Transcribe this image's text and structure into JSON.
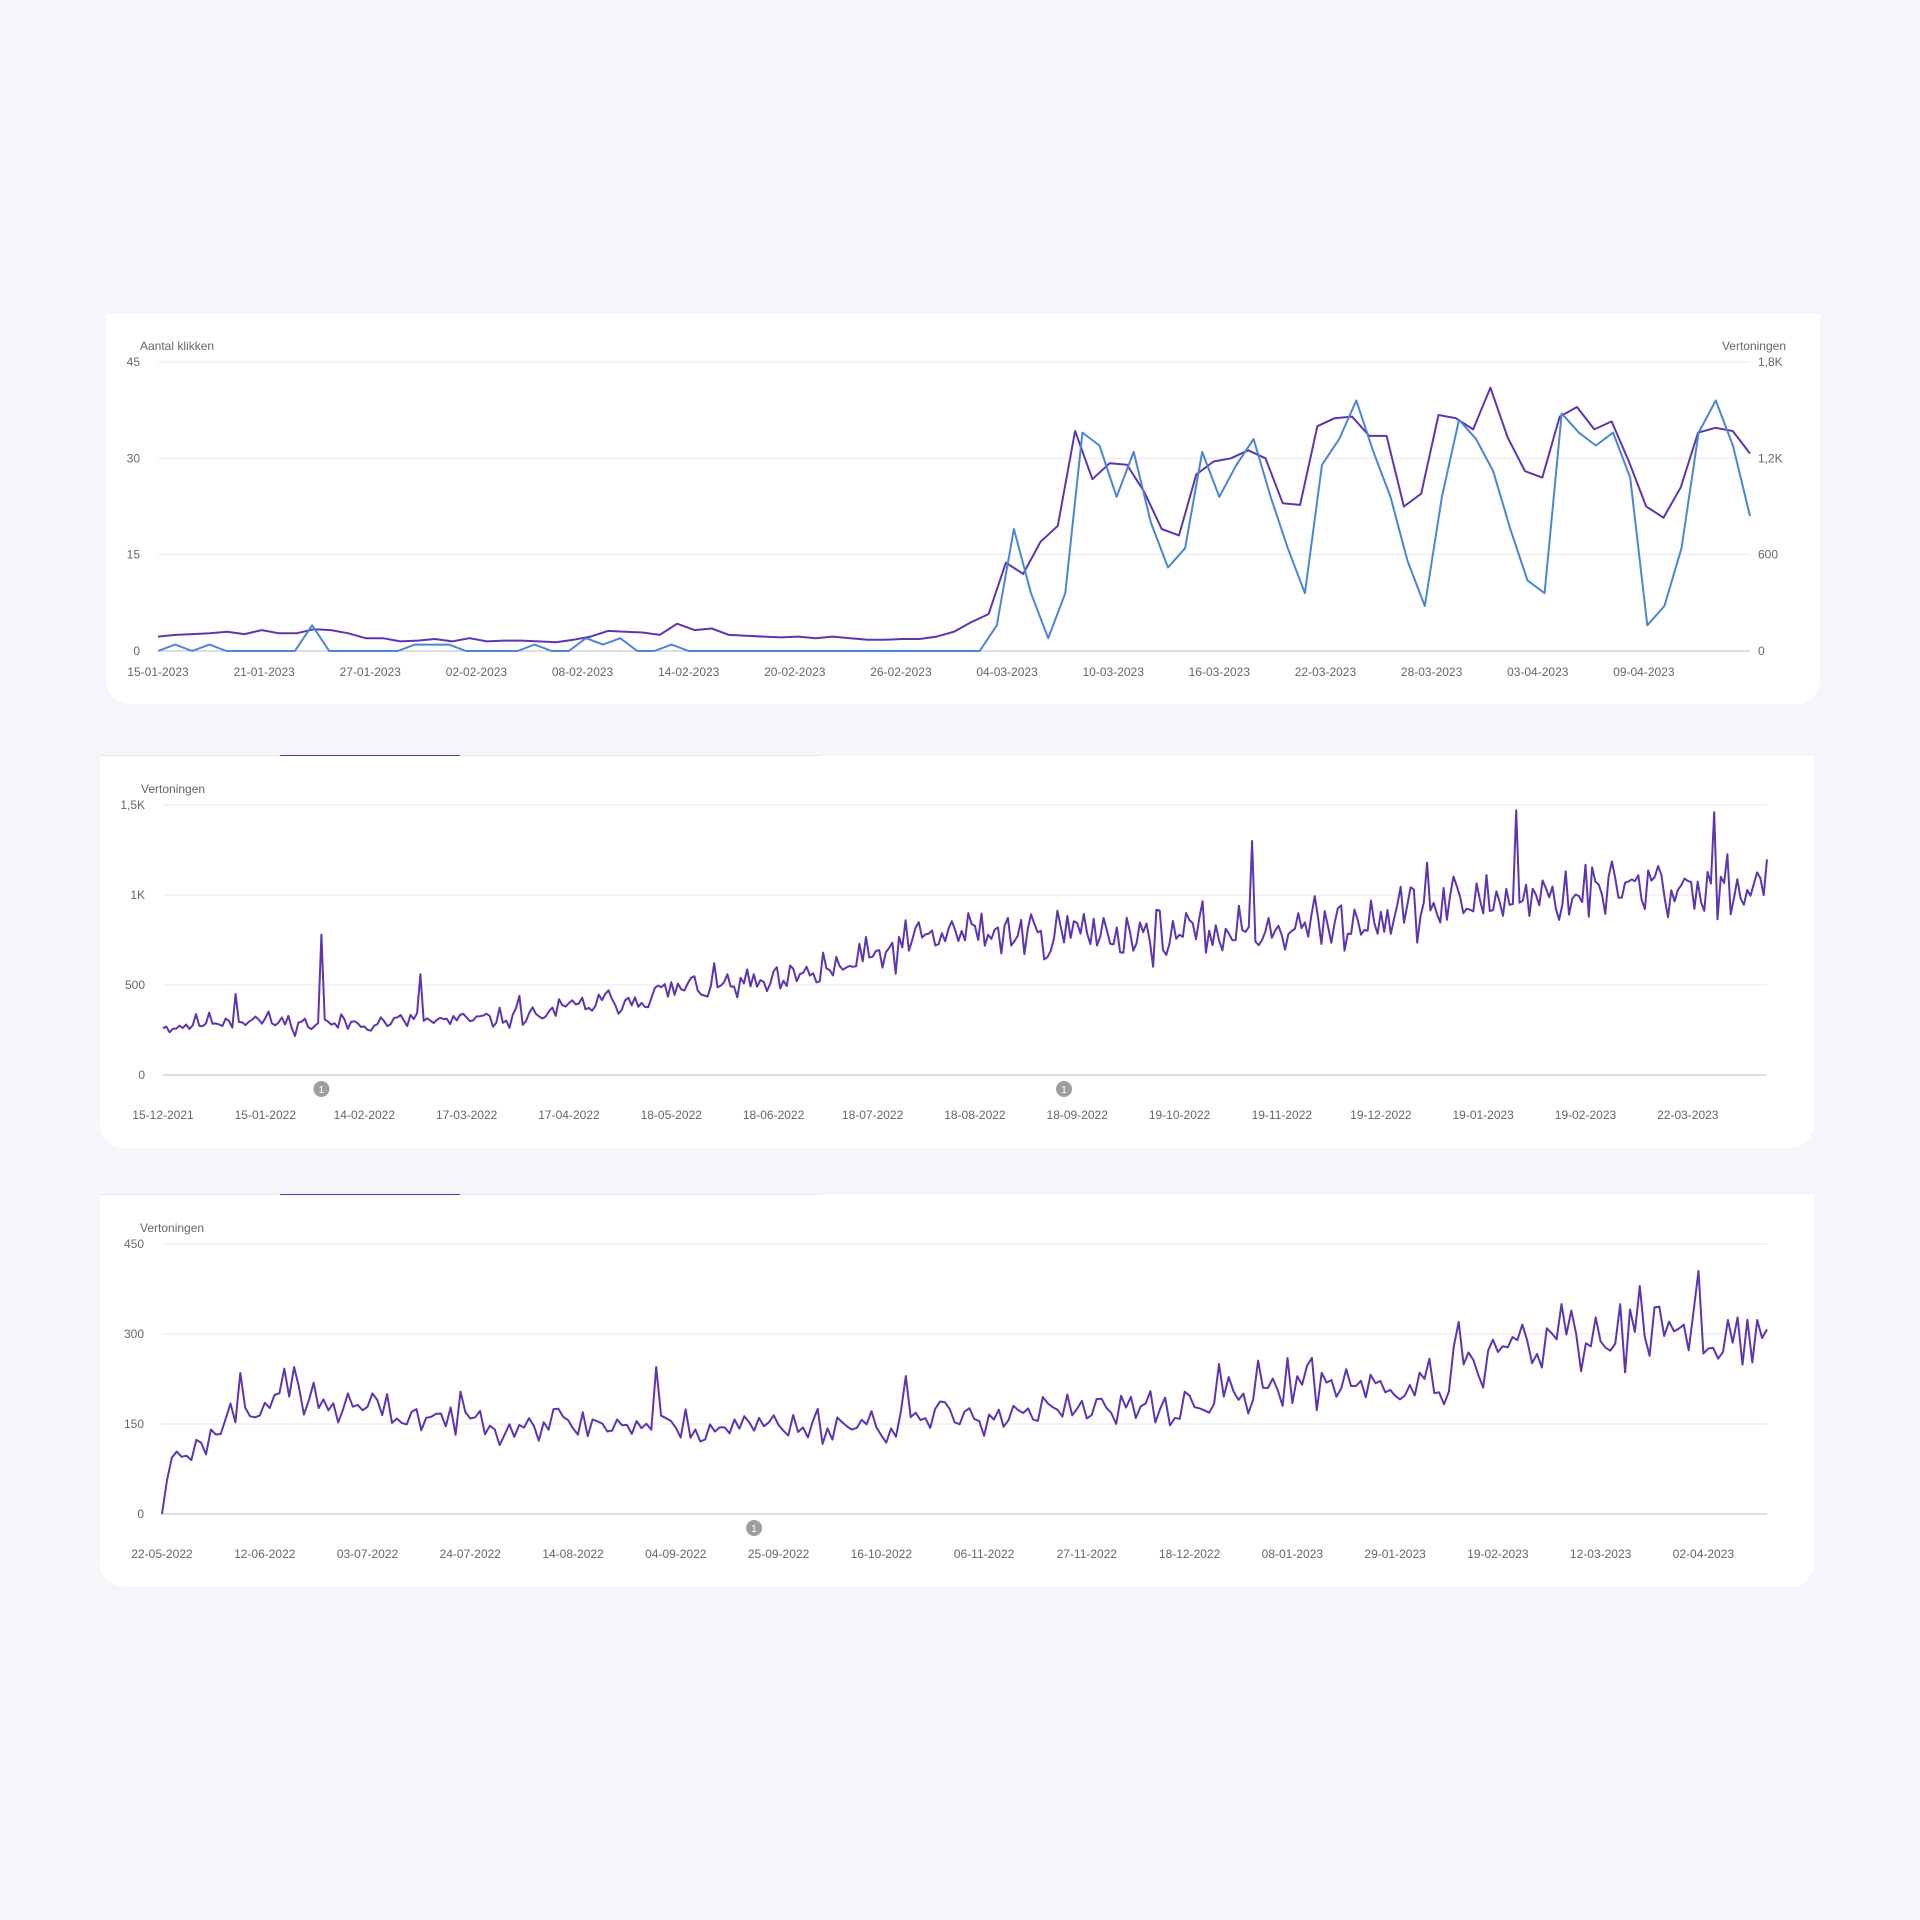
{
  "colors": {
    "background": "#f4f6f9",
    "card": "#ffffff",
    "impressions_line": "#5e35b1",
    "clicks_line": "#4a86d4",
    "gridline": "#e6e8ec",
    "axis_text": "#666666",
    "marker": "#9e9e9e"
  },
  "chart_data": [
    {
      "type": "line",
      "ylabel": "Aantal klikken",
      "y2label": "Vertoningen",
      "ylim": [
        0,
        45
      ],
      "y2lim": [
        0,
        1800
      ],
      "yticks": [
        "0",
        "15",
        "30",
        "45"
      ],
      "y2ticks": [
        "0",
        "600",
        "1,2K",
        "1,8K"
      ],
      "x_start": "15-01-2023",
      "x_end": "15-04-2023",
      "xticks": [
        "15-01-2023",
        "21-01-2023",
        "27-01-2023",
        "02-02-2023",
        "08-02-2023",
        "14-02-2023",
        "20-02-2023",
        "26-02-2023",
        "04-03-2023",
        "10-03-2023",
        "16-03-2023",
        "22-03-2023",
        "28-03-2023",
        "03-04-2023",
        "09-04-2023"
      ],
      "grid": true,
      "series": [
        {
          "axis": "y2",
          "color": "#5e35b1",
          "values": [
            90,
            100,
            105,
            110,
            120,
            105,
            130,
            110,
            110,
            135,
            130,
            110,
            80,
            80,
            60,
            65,
            75,
            60,
            80,
            60,
            65,
            65,
            60,
            55,
            70,
            90,
            125,
            120,
            115,
            100,
            170,
            130,
            140,
            100,
            95,
            90,
            85,
            90,
            80,
            90,
            80,
            70,
            70,
            75,
            75,
            90,
            120,
            180,
            230,
            550,
            480,
            680,
            780,
            1370,
            1070,
            1170,
            1160,
            990,
            760,
            720,
            1100,
            1180,
            1200,
            1250,
            1200,
            920,
            910,
            1400,
            1450,
            1460,
            1340,
            1340,
            900,
            980,
            1470,
            1450,
            1380,
            1640,
            1330,
            1120,
            1080,
            1460,
            1520,
            1380,
            1430,
            1180,
            900,
            830,
            1020,
            1360,
            1390,
            1370,
            1230
          ]
        },
        {
          "axis": "y",
          "color": "#4a86d4",
          "values": [
            0,
            1,
            0,
            1,
            0,
            0,
            0,
            0,
            0,
            4,
            0,
            0,
            0,
            0,
            0,
            1,
            1,
            1,
            0,
            0,
            0,
            0,
            1,
            0,
            0,
            2,
            1,
            2,
            0,
            0,
            1,
            0,
            0,
            0,
            0,
            0,
            0,
            0,
            0,
            0,
            0,
            0,
            0,
            0,
            0,
            0,
            0,
            0,
            0,
            4,
            19,
            9,
            2,
            9,
            34,
            32,
            24,
            31,
            20,
            13,
            16,
            31,
            24,
            29,
            33,
            24,
            16,
            9,
            29,
            33,
            39,
            31,
            24,
            14,
            7,
            24,
            36,
            33,
            28,
            19,
            11,
            9,
            37,
            34,
            32,
            34,
            27,
            4,
            7,
            16,
            34,
            39,
            32,
            21
          ]
        }
      ]
    },
    {
      "type": "line",
      "ylabel": "Vertoningen",
      "ylim": [
        0,
        1500
      ],
      "yticks": [
        "0",
        "500",
        "1K",
        "1,5K"
      ],
      "x_start": "15-12-2021",
      "x_end": "15-04-2023",
      "xticks": [
        "15-12-2021",
        "15-01-2022",
        "14-02-2022",
        "17-03-2022",
        "17-04-2022",
        "18-05-2022",
        "18-06-2022",
        "18-07-2022",
        "18-08-2022",
        "18-09-2022",
        "19-10-2022",
        "19-11-2022",
        "19-12-2022",
        "19-01-2023",
        "19-02-2023",
        "22-03-2023"
      ],
      "markers": [
        {
          "date": "01-02-2022",
          "label": "1"
        },
        {
          "date": "14-09-2022",
          "label": "1"
        }
      ],
      "grid": true,
      "series": [
        {
          "color": "#5e35b1",
          "anchors": [
            [
              0,
              260
            ],
            [
              15,
              300
            ],
            [
              25,
              310
            ],
            [
              45,
              280
            ],
            [
              60,
              290
            ],
            [
              75,
              300
            ],
            [
              90,
              300
            ],
            [
              110,
              320
            ],
            [
              125,
              380
            ],
            [
              140,
              420
            ],
            [
              155,
              470
            ],
            [
              170,
              500
            ],
            [
              185,
              500
            ],
            [
              200,
              560
            ],
            [
              215,
              650
            ],
            [
              230,
              760
            ],
            [
              245,
              800
            ],
            [
              260,
              780
            ],
            [
              275,
              800
            ],
            [
              290,
              790
            ],
            [
              305,
              780
            ],
            [
              320,
              790
            ],
            [
              335,
              820
            ],
            [
              350,
              820
            ],
            [
              365,
              890
            ],
            [
              380,
              920
            ],
            [
              395,
              960
            ],
            [
              410,
              980
            ],
            [
              425,
              1010
            ],
            [
              440,
              1030
            ],
            [
              455,
              1040
            ],
            [
              470,
              1050
            ],
            [
              486,
              1050
            ]
          ],
          "amplitude": 0.09,
          "seed": 11,
          "spikes": [
            [
              22,
              450
            ],
            [
              48,
              780
            ],
            [
              78,
              560
            ],
            [
              108,
              440
            ],
            [
              160,
              540
            ],
            [
              200,
              680
            ],
            [
              330,
              1300
            ],
            [
              383,
              1180
            ],
            [
              410,
              1470
            ],
            [
              470,
              1460
            ]
          ]
        }
      ]
    },
    {
      "type": "line",
      "ylabel": "Vertoningen",
      "ylim": [
        0,
        450
      ],
      "yticks": [
        "0",
        "150",
        "300",
        "450"
      ],
      "x_start": "22-05-2022",
      "x_end": "15-04-2023",
      "xticks": [
        "22-05-2022",
        "12-06-2022",
        "03-07-2022",
        "24-07-2022",
        "14-08-2022",
        "04-09-2022",
        "25-09-2022",
        "16-10-2022",
        "06-11-2022",
        "27-11-2022",
        "18-12-2022",
        "08-01-2023",
        "29-01-2023",
        "19-02-2023",
        "12-03-2023",
        "02-04-2023"
      ],
      "markers": [
        {
          "date": "20-09-2022",
          "label": "1"
        }
      ],
      "grid": true,
      "series": [
        {
          "color": "#5e35b1",
          "anchors": [
            [
              0,
              0
            ],
            [
              2,
              100
            ],
            [
              8,
              110
            ],
            [
              15,
              175
            ],
            [
              25,
              200
            ],
            [
              35,
              180
            ],
            [
              50,
              165
            ],
            [
              70,
              155
            ],
            [
              90,
              150
            ],
            [
              110,
              145
            ],
            [
              130,
              150
            ],
            [
              150,
              150
            ],
            [
              170,
              170
            ],
            [
              190,
              170
            ],
            [
              205,
              175
            ],
            [
              215,
              190
            ],
            [
              230,
              215
            ],
            [
              245,
              225
            ],
            [
              255,
              205
            ],
            [
              265,
              230
            ],
            [
              275,
              270
            ],
            [
              285,
              280
            ],
            [
              300,
              295
            ],
            [
              320,
              300
            ],
            [
              335,
              300
            ],
            [
              350,
              310
            ],
            [
              328,
              300
            ]
          ],
          "amplitude": 0.1,
          "seed": 23,
          "spikes": [
            [
              16,
              235
            ],
            [
              27,
              245
            ],
            [
              101,
              245
            ],
            [
              152,
              230
            ],
            [
              216,
              250
            ],
            [
              230,
              260
            ],
            [
              255,
              215
            ],
            [
              265,
              320
            ],
            [
              286,
              350
            ],
            [
              302,
              380
            ],
            [
              314,
              405
            ],
            [
              335,
              430
            ],
            [
              345,
              440
            ]
          ]
        }
      ]
    }
  ]
}
